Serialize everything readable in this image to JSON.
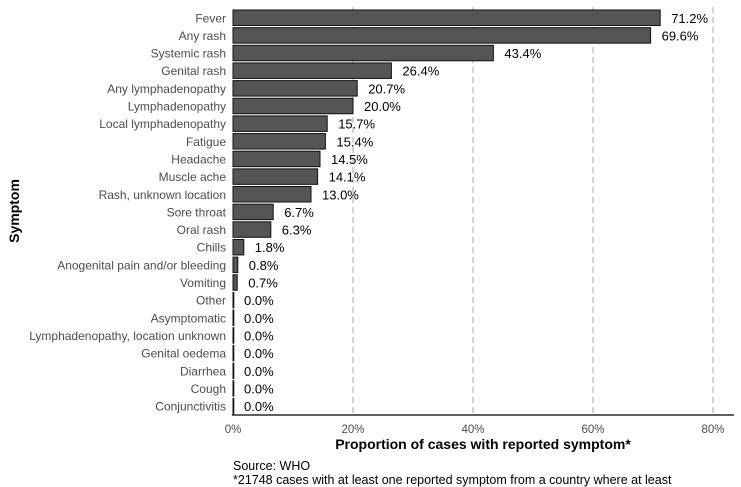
{
  "chart_data": {
    "type": "bar",
    "orientation": "horizontal",
    "categories": [
      "Fever",
      "Any rash",
      "Systemic rash",
      "Genital rash",
      "Any lymphadenopathy",
      "Lymphadenopathy",
      "Local lymphadenopathy",
      "Fatigue",
      "Headache",
      "Muscle ache",
      "Rash, unknown location",
      "Sore throat",
      "Oral rash",
      "Chills",
      "Anogenital pain and/or bleeding",
      "Vomiting",
      "Other",
      "Asymptomatic",
      "Lymphadenopathy, location unknown",
      "Genital oedema",
      "Diarrhea",
      "Cough",
      "Conjunctivitis"
    ],
    "values": [
      71.2,
      69.6,
      43.4,
      26.4,
      20.7,
      20.0,
      15.7,
      15.4,
      14.5,
      14.1,
      13.0,
      6.7,
      6.3,
      1.8,
      0.8,
      0.7,
      0.0,
      0.0,
      0.0,
      0.0,
      0.0,
      0.0,
      0.0
    ],
    "value_labels": [
      "71.2%",
      "69.6%",
      "43.4%",
      "26.4%",
      "20.7%",
      "20.0%",
      "15.7%",
      "15.4%",
      "14.5%",
      "14.1%",
      "13.0%",
      "6.7%",
      "6.3%",
      "1.8%",
      "0.8%",
      "0.7%",
      "0.0%",
      "0.0%",
      "0.0%",
      "0.0%",
      "0.0%",
      "0.0%",
      "0.0%"
    ],
    "xlim": [
      0,
      84
    ],
    "xticks": [
      0,
      20,
      40,
      60,
      80
    ],
    "xtick_labels": [
      "0%",
      "20%",
      "40%",
      "60%",
      "80%"
    ],
    "xlabel": "Proportion of cases with reported symptom*",
    "ylabel": "Symptom",
    "grid": "vertical dashed",
    "bar_color": "#555555"
  },
  "caption": {
    "source": "Source: WHO",
    "note": "*21748 cases with at least one reported symptom from a country where at least"
  }
}
